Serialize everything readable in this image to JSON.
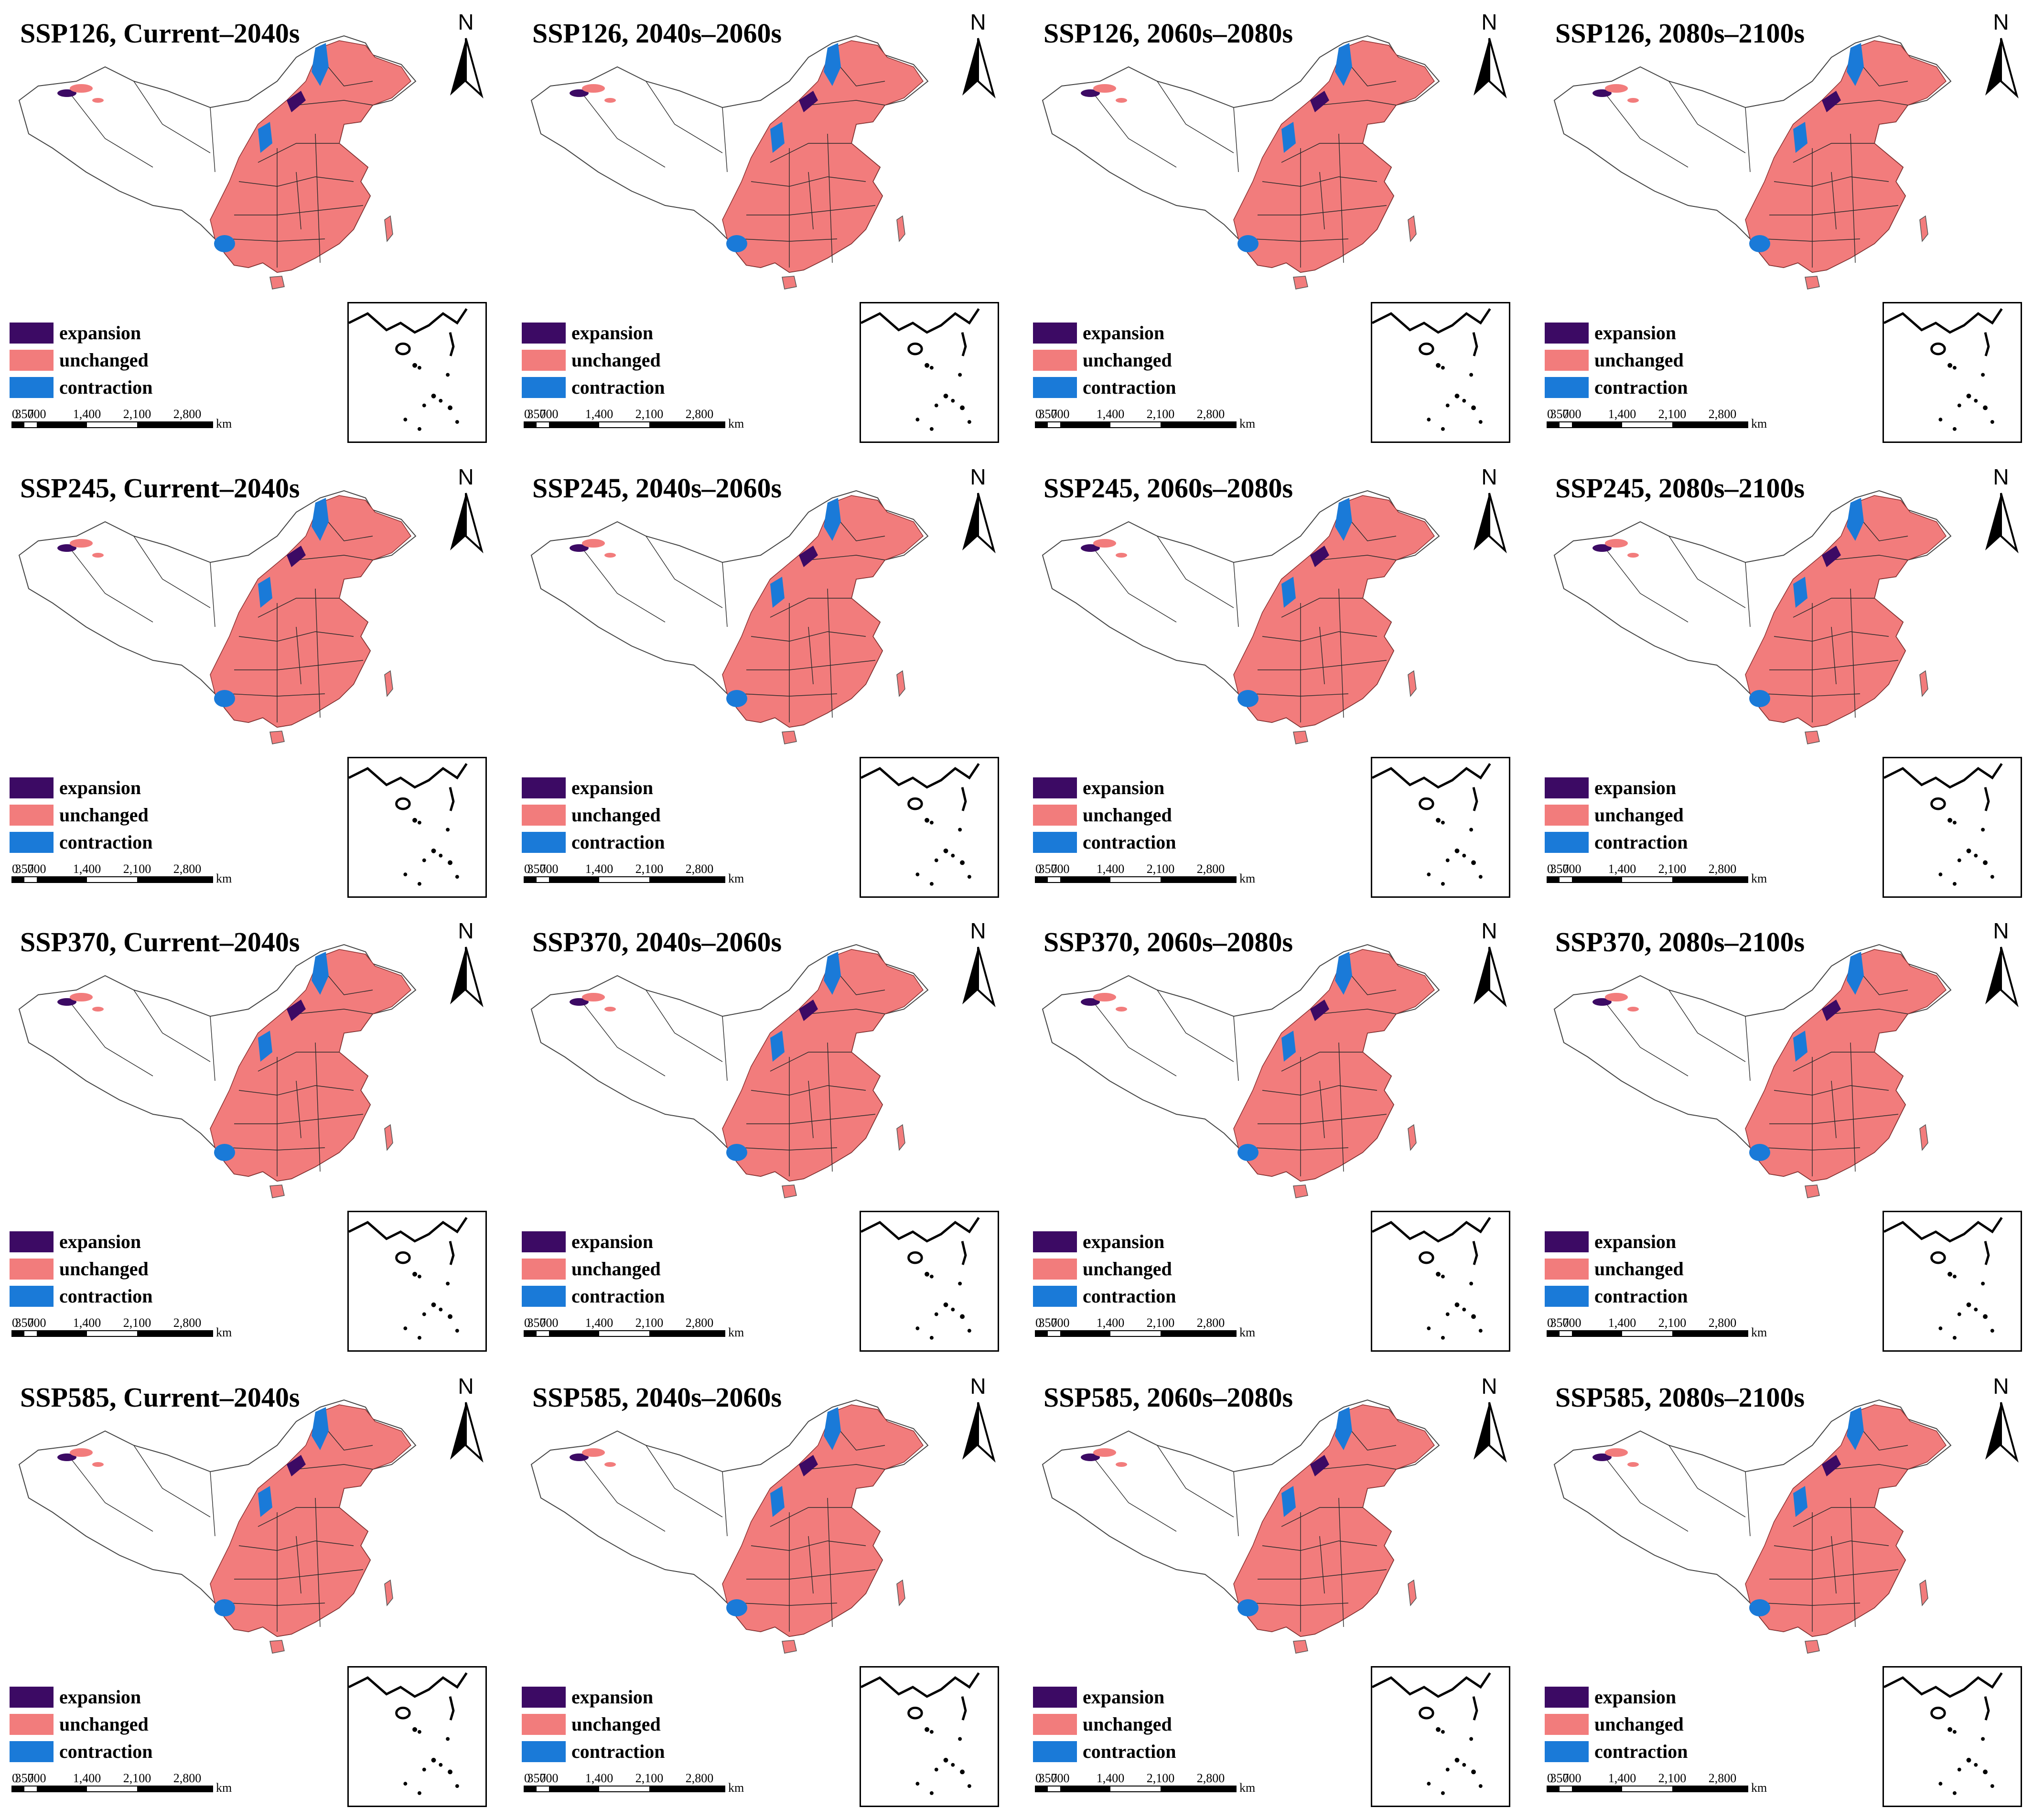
{
  "legend": {
    "items": [
      {
        "label": "expansion",
        "color": "#3c0a64"
      },
      {
        "label": "unchanged",
        "color": "#f27c7c"
      },
      {
        "label": "contraction",
        "color": "#1a7ad8"
      }
    ]
  },
  "scale_bar": {
    "ticks": [
      "0",
      "350",
      "700",
      "1,400",
      "2,100",
      "2,800"
    ],
    "unit": "km"
  },
  "north_label": "N",
  "panels": [
    {
      "title": "SSP126, Current–2040s"
    },
    {
      "title": "SSP126, 2040s–2060s"
    },
    {
      "title": "SSP126, 2060s–2080s"
    },
    {
      "title": "SSP126, 2080s–2100s"
    },
    {
      "title": "SSP245, Current–2040s"
    },
    {
      "title": "SSP245, 2040s–2060s"
    },
    {
      "title": "SSP245, 2060s–2080s"
    },
    {
      "title": "SSP245, 2080s–2100s"
    },
    {
      "title": "SSP370, Current–2040s"
    },
    {
      "title": "SSP370, 2040s–2060s"
    },
    {
      "title": "SSP370, 2060s–2080s"
    },
    {
      "title": "SSP370, 2080s–2100s"
    },
    {
      "title": "SSP585, Current–2040s"
    },
    {
      "title": "SSP585, 2040s–2060s"
    },
    {
      "title": "SSP585, 2060s–2080s"
    },
    {
      "title": "SSP585, 2080s–2100s"
    }
  ]
}
